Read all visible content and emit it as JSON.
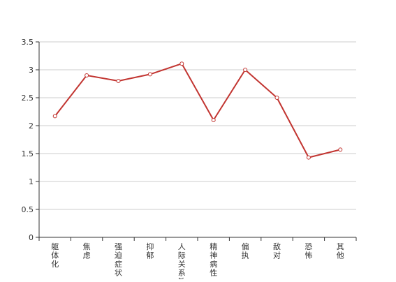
{
  "chart_data": {
    "type": "line",
    "categories": [
      "躯体化",
      "焦虑",
      "强迫症状",
      "抑郁",
      "人际关系敏感",
      "精神病性",
      "偏执",
      "敌对",
      "恐怖",
      "其他"
    ],
    "series": [
      {
        "values": [
          2.17,
          2.9,
          2.8,
          2.92,
          3.11,
          2.1,
          3.0,
          2.5,
          1.43,
          1.57
        ]
      }
    ],
    "ylim": [
      0,
      3.5
    ],
    "yticks": [
      0,
      0.5,
      1,
      1.5,
      2,
      2.5,
      3,
      3.5
    ],
    "grid": true,
    "line_color": "#c23531",
    "xlabel": "",
    "ylabel": ""
  }
}
